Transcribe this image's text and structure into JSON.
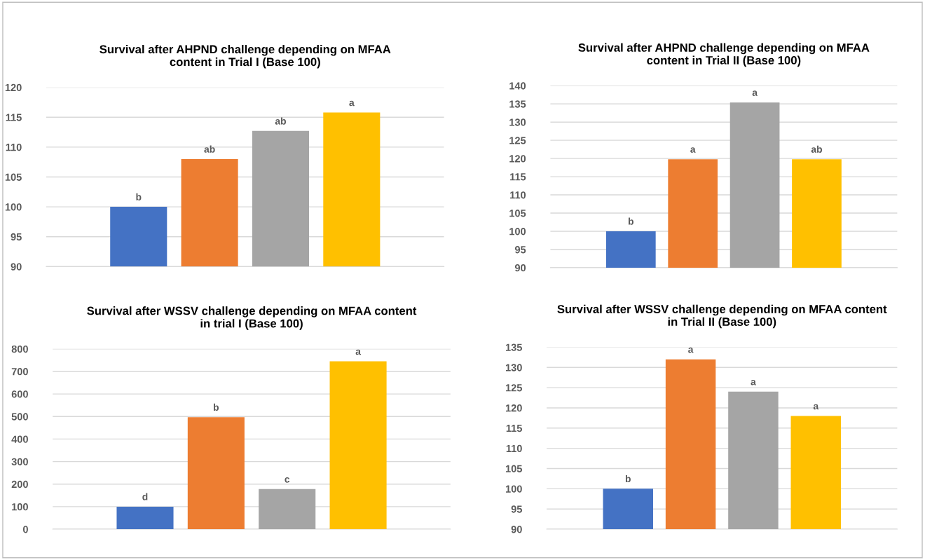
{
  "chart_data": [
    {
      "type": "bar",
      "title": "Survival after AHPND challenge depending on MFAA\ncontent in Trial I (Base 100)",
      "categories": [
        null,
        null,
        null,
        null
      ],
      "values": [
        100,
        108,
        112.7,
        115.8
      ],
      "colors": [
        "#4472c4",
        "#ed7d31",
        "#a5a5a5",
        "#ffc000"
      ],
      "ylim": [
        90,
        120
      ],
      "yticks": [
        90,
        95,
        100,
        105,
        110,
        115,
        120
      ],
      "grid": "y",
      "legend": false,
      "annotations": [
        {
          "text": "b",
          "y": 100
        },
        {
          "text": "ab",
          "y": 108
        },
        {
          "text": "ab",
          "y": 112.7
        },
        {
          "text": "a",
          "y": 115.8
        }
      ]
    },
    {
      "type": "bar",
      "title": "Survival after AHPND challenge depending on MFAA\ncontent in Trial II (Base 100)",
      "categories": [
        null,
        null,
        null,
        null
      ],
      "values": [
        100,
        119.8,
        135.4,
        119.8
      ],
      "colors": [
        "#4472c4",
        "#ed7d31",
        "#a5a5a5",
        "#ffc000"
      ],
      "ylim": [
        90,
        140
      ],
      "yticks": [
        90,
        95,
        100,
        105,
        110,
        115,
        120,
        125,
        130,
        135,
        140
      ],
      "grid": "y",
      "legend": false,
      "annotations": [
        {
          "text": "b",
          "y": 100
        },
        {
          "text": "a",
          "y": 119.8
        },
        {
          "text": "a",
          "y": 135.4
        },
        {
          "text": "ab",
          "y": 119.8
        }
      ]
    },
    {
      "type": "bar",
      "title": "Survival after WSSV challenge depending on MFAA content\nin trial I (Base 100)",
      "categories": [
        null,
        null,
        null,
        null
      ],
      "values": [
        100,
        497,
        178,
        745
      ],
      "colors": [
        "#4472c4",
        "#ed7d31",
        "#a5a5a5",
        "#ffc000"
      ],
      "ylim": [
        0,
        800
      ],
      "yticks": [
        0,
        100,
        200,
        300,
        400,
        500,
        600,
        700,
        800
      ],
      "grid": "y",
      "legend": false,
      "annotations": [
        {
          "text": "d",
          "y": 100
        },
        {
          "text": "b",
          "y": 497
        },
        {
          "text": "c",
          "y": 178
        },
        {
          "text": "a",
          "y": 745
        }
      ]
    },
    {
      "type": "bar",
      "title": "Survival after WSSV challenge depending on MFAA content\nin Trial II (Base 100)",
      "categories": [
        null,
        null,
        null,
        null
      ],
      "values": [
        100,
        132,
        124,
        118
      ],
      "colors": [
        "#4472c4",
        "#ed7d31",
        "#a5a5a5",
        "#ffc000"
      ],
      "ylim": [
        90,
        135
      ],
      "yticks": [
        90,
        95,
        100,
        105,
        110,
        115,
        120,
        125,
        130,
        135
      ],
      "grid": "y",
      "legend": false,
      "annotations": [
        {
          "text": "b",
          "y": 100
        },
        {
          "text": "a",
          "y": 132
        },
        {
          "text": "a",
          "y": 124
        },
        {
          "text": "a",
          "y": 118
        }
      ]
    }
  ]
}
